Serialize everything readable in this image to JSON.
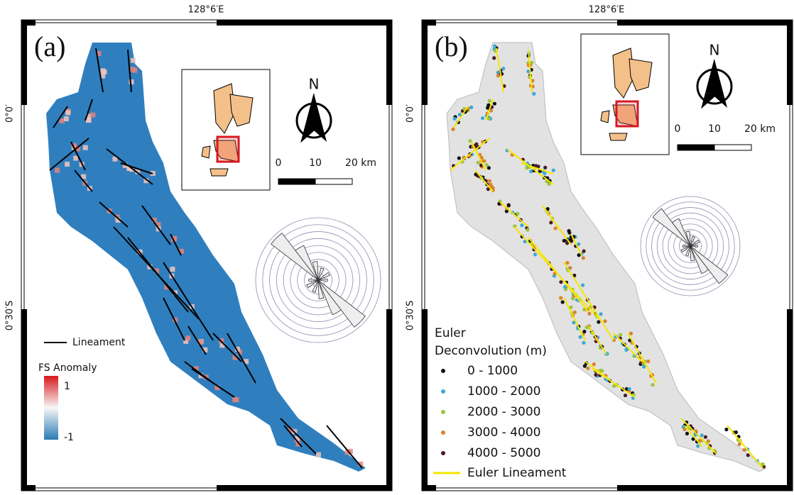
{
  "panels": [
    {
      "label": "(a)",
      "top_coordinate": "128°6′E",
      "left_coordinates": [
        "0°0′",
        "0°30′S"
      ],
      "north": "N",
      "scale_labels": [
        "0",
        "10",
        "20 km"
      ],
      "legend": {
        "line_label": "Lineament",
        "line_color": "#000000",
        "gradient_title": "FS Anomaly",
        "gradient_labels": [
          "1",
          "-1"
        ]
      }
    },
    {
      "label": "(b)",
      "top_coordinate": "128°6′E",
      "left_coordinates": [
        "0°0′",
        "0°30′S"
      ],
      "north": "N",
      "scale_labels": [
        "0",
        "10",
        "20 km"
      ],
      "legend": {
        "title_lines": [
          "Euler",
          "Deconvolution (m)"
        ],
        "items": [
          {
            "label": "0 - 1000",
            "color": "#101018"
          },
          {
            "label": "1000 - 2000",
            "color": "#3aa9d8"
          },
          {
            "label": "2000 - 3000",
            "color": "#9bc53d"
          },
          {
            "label": "3000 - 4000",
            "color": "#d9822b"
          },
          {
            "label": "4000 - 5000",
            "color": "#4a1a2a"
          }
        ],
        "line_label": "Euler Lineament",
        "line_color": "#f5e600"
      }
    }
  ]
}
